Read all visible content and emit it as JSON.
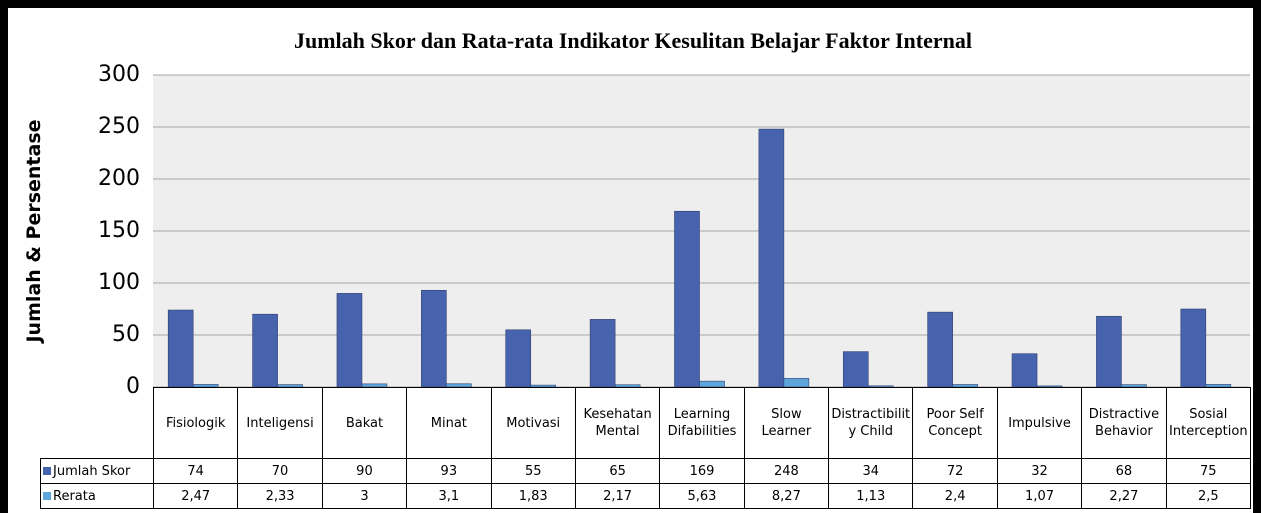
{
  "chart_data": {
    "type": "bar",
    "title": "Jumlah Skor dan Rata-rata Indikator Kesulitan Belajar  Faktor Internal",
    "ylabel": "Jumlah & Persentase",
    "categories": [
      "Fisiologik",
      "Inteligensi",
      "Bakat",
      "Minat",
      "Motivasi",
      "Kesehatan Mental",
      "Learning Difabilities",
      "Slow Learner",
      "Distractibility Child",
      "Poor Self Concept",
      "Impulsive",
      "Distractive Behavior",
      "Sosial Interception"
    ],
    "series": [
      {
        "name": "Jumlah Skor",
        "color": "#4863ad",
        "values": [
          74,
          70,
          90,
          93,
          55,
          65,
          169,
          248,
          34,
          72,
          32,
          68,
          75
        ]
      },
      {
        "name": "Rerata",
        "color": "#5ea6da",
        "values": [
          2.47,
          2.33,
          3,
          3.1,
          1.83,
          2.17,
          5.63,
          8.27,
          1.13,
          2.4,
          1.07,
          2.27,
          2.5
        ],
        "value_labels": [
          "2,47",
          "2,33",
          "3",
          "3,1",
          "1,83",
          "2,17",
          "5,63",
          "8,27",
          "1,13",
          "2,4",
          "1,07",
          "2,27",
          "2,5"
        ]
      }
    ],
    "ylim": [
      0,
      300
    ],
    "yticks": [
      0,
      50,
      100,
      150,
      200,
      250,
      300
    ],
    "grid": true
  }
}
